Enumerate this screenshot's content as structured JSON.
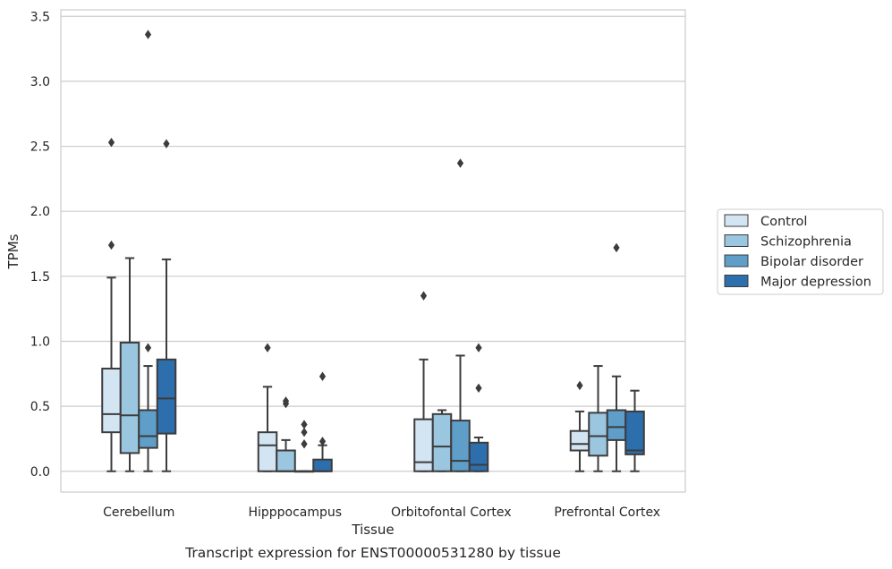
{
  "chart_data": {
    "type": "box",
    "title": "",
    "caption": "Transcript expression for ENST00000531280 by tissue",
    "xlabel": "Tissue",
    "ylabel": "TPMs",
    "ylim": [
      -0.16,
      3.55
    ],
    "yticks": [
      0.0,
      0.5,
      1.0,
      1.5,
      2.0,
      2.5,
      3.0,
      3.5
    ],
    "ytick_labels": [
      "0.0",
      "0.5",
      "1.0",
      "1.5",
      "2.0",
      "2.5",
      "3.0",
      "3.5"
    ],
    "grid": "horizontal",
    "legend_position": "right",
    "categories": [
      "Cerebellum",
      "Hipppocampus",
      "Orbitofontal Cortex",
      "Prefrontal Cortex"
    ],
    "series": [
      {
        "name": "Control",
        "color": "#d3e4f3",
        "boxes": [
          {
            "q1": 0.3,
            "median": 0.44,
            "q3": 0.79,
            "whisker_low": 0.0,
            "whisker_high": 1.49,
            "outliers": [
              1.74,
              2.53
            ]
          },
          {
            "q1": 0.0,
            "median": 0.2,
            "q3": 0.3,
            "whisker_low": 0.0,
            "whisker_high": 0.65,
            "outliers": [
              0.95
            ]
          },
          {
            "q1": 0.0,
            "median": 0.07,
            "q3": 0.4,
            "whisker_low": 0.0,
            "whisker_high": 0.86,
            "outliers": [
              1.35
            ]
          },
          {
            "q1": 0.16,
            "median": 0.21,
            "q3": 0.31,
            "whisker_low": 0.0,
            "whisker_high": 0.46,
            "outliers": [
              0.66
            ]
          }
        ]
      },
      {
        "name": "Schizophrenia",
        "color": "#9ac6e0",
        "boxes": [
          {
            "q1": 0.14,
            "median": 0.43,
            "q3": 0.99,
            "whisker_low": 0.0,
            "whisker_high": 1.64,
            "outliers": []
          },
          {
            "q1": 0.0,
            "median": 0.0,
            "q3": 0.16,
            "whisker_low": 0.0,
            "whisker_high": 0.24,
            "outliers": [
              0.52,
              0.54
            ]
          },
          {
            "q1": 0.0,
            "median": 0.19,
            "q3": 0.44,
            "whisker_low": 0.0,
            "whisker_high": 0.47,
            "outliers": []
          },
          {
            "q1": 0.12,
            "median": 0.27,
            "q3": 0.45,
            "whisker_low": 0.0,
            "whisker_high": 0.81,
            "outliers": []
          }
        ]
      },
      {
        "name": "Bipolar disorder",
        "color": "#5f9ec9",
        "boxes": [
          {
            "q1": 0.18,
            "median": 0.27,
            "q3": 0.47,
            "whisker_low": 0.0,
            "whisker_high": 0.81,
            "outliers": [
              0.95,
              3.36
            ]
          },
          {
            "q1": 0.0,
            "median": 0.0,
            "q3": 0.0,
            "whisker_low": 0.0,
            "whisker_high": 0.0,
            "outliers": [
              0.21,
              0.3,
              0.36
            ]
          },
          {
            "q1": 0.0,
            "median": 0.08,
            "q3": 0.39,
            "whisker_low": 0.0,
            "whisker_high": 0.89,
            "outliers": [
              2.37
            ]
          },
          {
            "q1": 0.24,
            "median": 0.34,
            "q3": 0.47,
            "whisker_low": 0.0,
            "whisker_high": 0.73,
            "outliers": [
              1.72
            ]
          }
        ]
      },
      {
        "name": "Major depression",
        "color": "#2d6ead",
        "boxes": [
          {
            "q1": 0.29,
            "median": 0.56,
            "q3": 0.86,
            "whisker_low": 0.0,
            "whisker_high": 1.63,
            "outliers": [
              2.52
            ]
          },
          {
            "q1": 0.0,
            "median": 0.0,
            "q3": 0.09,
            "whisker_low": 0.0,
            "whisker_high": 0.2,
            "outliers": [
              0.23,
              0.73
            ]
          },
          {
            "q1": 0.0,
            "median": 0.05,
            "q3": 0.22,
            "whisker_low": 0.0,
            "whisker_high": 0.26,
            "outliers": [
              0.64,
              0.95
            ]
          },
          {
            "q1": 0.13,
            "median": 0.16,
            "q3": 0.46,
            "whisker_low": 0.0,
            "whisker_high": 0.62,
            "outliers": []
          }
        ]
      }
    ]
  },
  "colors": {
    "grid": "#cccccc",
    "frame": "#cccccc",
    "line": "#3c3c3c",
    "text": "#262626"
  }
}
